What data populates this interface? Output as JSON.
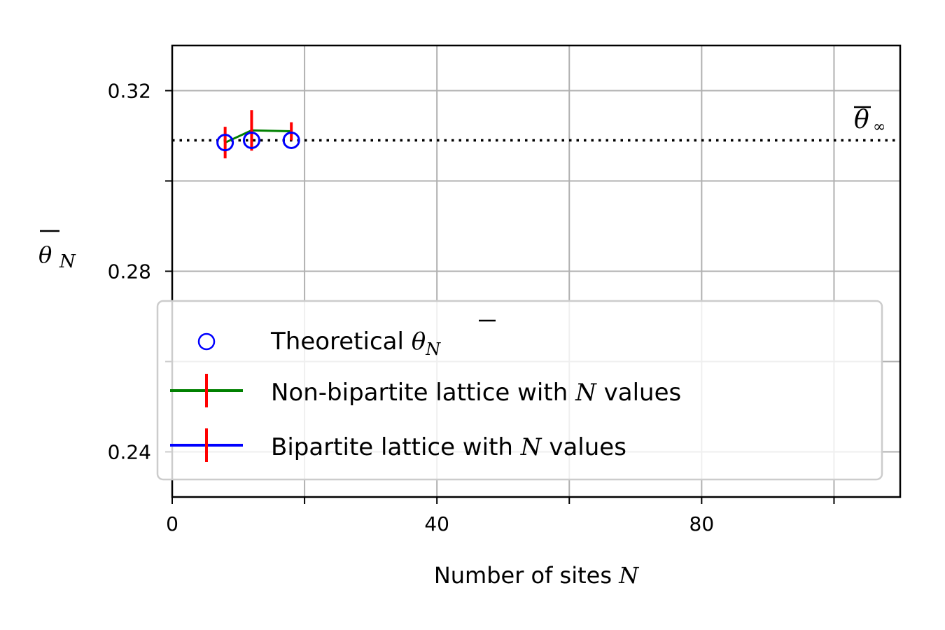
{
  "chart_data": {
    "type": "scatter",
    "xlabel": "Number of sites N",
    "xlabel_parts": {
      "text": "Number of sites ",
      "var": "N"
    },
    "ylabel": {
      "symbol": "θ",
      "sub": "N"
    },
    "xlim": [
      0,
      110
    ],
    "ylim": [
      0.23,
      0.33
    ],
    "x_ticks": [
      0,
      20,
      40,
      60,
      80,
      100
    ],
    "x_tick_labels": [
      "0",
      "",
      "40",
      "",
      "80",
      ""
    ],
    "y_ticks": [
      0.24,
      0.26,
      0.28,
      0.3,
      0.32
    ],
    "y_tick_labels": [
      "0.24",
      "",
      "0.28",
      "",
      "0.32"
    ],
    "grid": true,
    "reference_line": {
      "y": 0.309,
      "label": {
        "symbol": "θ",
        "sub": "∞"
      },
      "style": "dotted",
      "color": "#000000"
    },
    "series": [
      {
        "name": "Theoretical θN",
        "kind": "markers",
        "marker": "open-circle",
        "color": "#0000ff",
        "x": [
          8,
          12,
          18
        ],
        "y": [
          0.3085,
          0.309,
          0.309
        ]
      },
      {
        "name": "Non-bipartite lattice with N values",
        "kind": "line-errorbar",
        "color": "#008000",
        "err_color": "#ff0000",
        "x": [
          8,
          12,
          18
        ],
        "y": [
          0.3085,
          0.3112,
          0.311
        ],
        "err": [
          0.0035,
          0.0045,
          0.002
        ]
      },
      {
        "name": "Bipartite lattice with N values",
        "kind": "line-errorbar",
        "color": "#0000ff",
        "err_color": "#ff0000",
        "x": [],
        "y": [],
        "err": []
      }
    ],
    "legend": {
      "position": "lower-left",
      "entries": [
        {
          "text": "Theoretical ",
          "math": {
            "symbol": "θ",
            "sub": "N"
          }
        },
        {
          "text": "Non-bipartite lattice with ",
          "var": "N",
          "after": " values"
        },
        {
          "text": "Bipartite lattice with ",
          "var": "N",
          "after": " values"
        }
      ]
    }
  }
}
